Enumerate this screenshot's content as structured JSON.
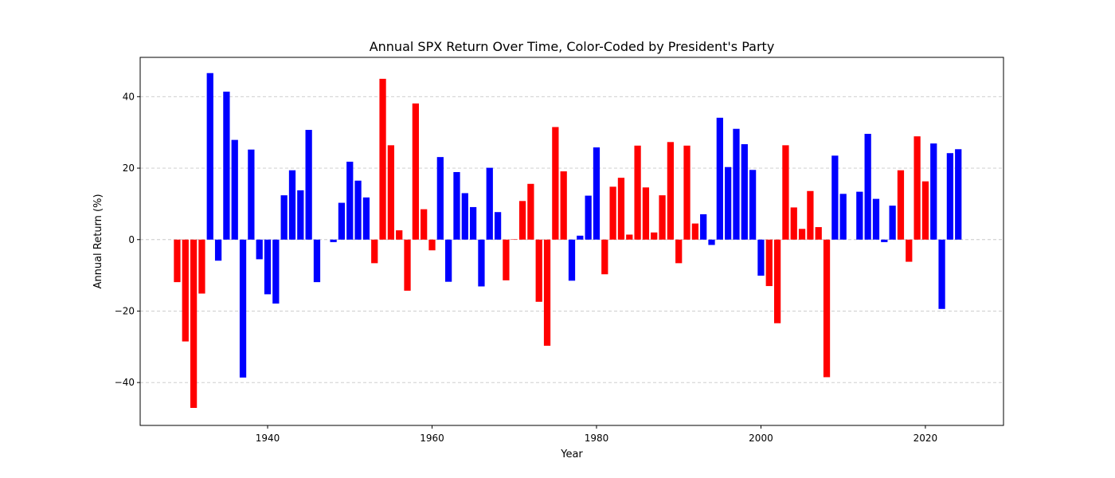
{
  "chart_data": {
    "type": "bar",
    "title": "Annual SPX Return Over Time, Color-Coded by President's Party",
    "xlabel": "Year",
    "ylabel": "Annual Return (%)",
    "xlim": [
      1924.5,
      2029.5
    ],
    "ylim": [
      -52,
      51
    ],
    "x_ticks": [
      1940,
      1960,
      1980,
      2000,
      2020
    ],
    "y_ticks": [
      -40,
      -20,
      0,
      20,
      40
    ],
    "grid": "y-dashed",
    "legend": "none",
    "colors": {
      "republican": "#ff0000",
      "democrat": "#0000ff",
      "grid": "#c8c8c8",
      "frame": "#000000"
    },
    "points": [
      {
        "year": 1929,
        "value": -11.9,
        "party": "republican"
      },
      {
        "year": 1930,
        "value": -28.5,
        "party": "republican"
      },
      {
        "year": 1931,
        "value": -47.1,
        "party": "republican"
      },
      {
        "year": 1932,
        "value": -15.1,
        "party": "republican"
      },
      {
        "year": 1933,
        "value": 46.6,
        "party": "democrat"
      },
      {
        "year": 1934,
        "value": -5.9,
        "party": "democrat"
      },
      {
        "year": 1935,
        "value": 41.4,
        "party": "democrat"
      },
      {
        "year": 1936,
        "value": 27.9,
        "party": "democrat"
      },
      {
        "year": 1937,
        "value": -38.6,
        "party": "democrat"
      },
      {
        "year": 1938,
        "value": 25.2,
        "party": "democrat"
      },
      {
        "year": 1939,
        "value": -5.5,
        "party": "democrat"
      },
      {
        "year": 1940,
        "value": -15.3,
        "party": "democrat"
      },
      {
        "year": 1941,
        "value": -17.9,
        "party": "democrat"
      },
      {
        "year": 1942,
        "value": 12.4,
        "party": "democrat"
      },
      {
        "year": 1943,
        "value": 19.4,
        "party": "democrat"
      },
      {
        "year": 1944,
        "value": 13.8,
        "party": "democrat"
      },
      {
        "year": 1945,
        "value": 30.7,
        "party": "democrat"
      },
      {
        "year": 1946,
        "value": -11.9,
        "party": "democrat"
      },
      {
        "year": 1947,
        "value": 0.0,
        "party": "democrat"
      },
      {
        "year": 1948,
        "value": -0.7,
        "party": "democrat"
      },
      {
        "year": 1949,
        "value": 10.3,
        "party": "democrat"
      },
      {
        "year": 1950,
        "value": 21.8,
        "party": "democrat"
      },
      {
        "year": 1951,
        "value": 16.5,
        "party": "democrat"
      },
      {
        "year": 1952,
        "value": 11.8,
        "party": "democrat"
      },
      {
        "year": 1953,
        "value": -6.6,
        "party": "republican"
      },
      {
        "year": 1954,
        "value": 45.0,
        "party": "republican"
      },
      {
        "year": 1955,
        "value": 26.4,
        "party": "republican"
      },
      {
        "year": 1956,
        "value": 2.6,
        "party": "republican"
      },
      {
        "year": 1957,
        "value": -14.3,
        "party": "republican"
      },
      {
        "year": 1958,
        "value": 38.1,
        "party": "republican"
      },
      {
        "year": 1959,
        "value": 8.5,
        "party": "republican"
      },
      {
        "year": 1960,
        "value": -3.0,
        "party": "republican"
      },
      {
        "year": 1961,
        "value": 23.1,
        "party": "democrat"
      },
      {
        "year": 1962,
        "value": -11.8,
        "party": "democrat"
      },
      {
        "year": 1963,
        "value": 18.9,
        "party": "democrat"
      },
      {
        "year": 1964,
        "value": 13.0,
        "party": "democrat"
      },
      {
        "year": 1965,
        "value": 9.1,
        "party": "democrat"
      },
      {
        "year": 1966,
        "value": -13.1,
        "party": "democrat"
      },
      {
        "year": 1967,
        "value": 20.1,
        "party": "democrat"
      },
      {
        "year": 1968,
        "value": 7.7,
        "party": "democrat"
      },
      {
        "year": 1969,
        "value": -11.4,
        "party": "republican"
      },
      {
        "year": 1970,
        "value": 0.1,
        "party": "republican"
      },
      {
        "year": 1971,
        "value": 10.8,
        "party": "republican"
      },
      {
        "year": 1972,
        "value": 15.6,
        "party": "republican"
      },
      {
        "year": 1973,
        "value": -17.4,
        "party": "republican"
      },
      {
        "year": 1974,
        "value": -29.7,
        "party": "republican"
      },
      {
        "year": 1975,
        "value": 31.5,
        "party": "republican"
      },
      {
        "year": 1976,
        "value": 19.1,
        "party": "republican"
      },
      {
        "year": 1977,
        "value": -11.5,
        "party": "democrat"
      },
      {
        "year": 1978,
        "value": 1.1,
        "party": "democrat"
      },
      {
        "year": 1979,
        "value": 12.3,
        "party": "democrat"
      },
      {
        "year": 1980,
        "value": 25.8,
        "party": "democrat"
      },
      {
        "year": 1981,
        "value": -9.7,
        "party": "republican"
      },
      {
        "year": 1982,
        "value": 14.8,
        "party": "republican"
      },
      {
        "year": 1983,
        "value": 17.3,
        "party": "republican"
      },
      {
        "year": 1984,
        "value": 1.4,
        "party": "republican"
      },
      {
        "year": 1985,
        "value": 26.3,
        "party": "republican"
      },
      {
        "year": 1986,
        "value": 14.6,
        "party": "republican"
      },
      {
        "year": 1987,
        "value": 2.0,
        "party": "republican"
      },
      {
        "year": 1988,
        "value": 12.4,
        "party": "republican"
      },
      {
        "year": 1989,
        "value": 27.3,
        "party": "republican"
      },
      {
        "year": 1990,
        "value": -6.6,
        "party": "republican"
      },
      {
        "year": 1991,
        "value": 26.3,
        "party": "republican"
      },
      {
        "year": 1992,
        "value": 4.5,
        "party": "republican"
      },
      {
        "year": 1993,
        "value": 7.1,
        "party": "democrat"
      },
      {
        "year": 1994,
        "value": -1.5,
        "party": "democrat"
      },
      {
        "year": 1995,
        "value": 34.1,
        "party": "democrat"
      },
      {
        "year": 1996,
        "value": 20.3,
        "party": "democrat"
      },
      {
        "year": 1997,
        "value": 31.0,
        "party": "democrat"
      },
      {
        "year": 1998,
        "value": 26.7,
        "party": "democrat"
      },
      {
        "year": 1999,
        "value": 19.5,
        "party": "democrat"
      },
      {
        "year": 2000,
        "value": -10.1,
        "party": "democrat"
      },
      {
        "year": 2001,
        "value": -13.0,
        "party": "republican"
      },
      {
        "year": 2002,
        "value": -23.4,
        "party": "republican"
      },
      {
        "year": 2003,
        "value": 26.4,
        "party": "republican"
      },
      {
        "year": 2004,
        "value": 9.0,
        "party": "republican"
      },
      {
        "year": 2005,
        "value": 3.0,
        "party": "republican"
      },
      {
        "year": 2006,
        "value": 13.6,
        "party": "republican"
      },
      {
        "year": 2007,
        "value": 3.5,
        "party": "republican"
      },
      {
        "year": 2008,
        "value": -38.5,
        "party": "republican"
      },
      {
        "year": 2009,
        "value": 23.5,
        "party": "democrat"
      },
      {
        "year": 2010,
        "value": 12.8,
        "party": "democrat"
      },
      {
        "year": 2011,
        "value": 0.0,
        "party": "democrat"
      },
      {
        "year": 2012,
        "value": 13.4,
        "party": "democrat"
      },
      {
        "year": 2013,
        "value": 29.6,
        "party": "democrat"
      },
      {
        "year": 2014,
        "value": 11.4,
        "party": "democrat"
      },
      {
        "year": 2015,
        "value": -0.7,
        "party": "democrat"
      },
      {
        "year": 2016,
        "value": 9.5,
        "party": "democrat"
      },
      {
        "year": 2017,
        "value": 19.4,
        "party": "republican"
      },
      {
        "year": 2018,
        "value": -6.2,
        "party": "republican"
      },
      {
        "year": 2019,
        "value": 28.9,
        "party": "republican"
      },
      {
        "year": 2020,
        "value": 16.3,
        "party": "republican"
      },
      {
        "year": 2021,
        "value": 26.9,
        "party": "democrat"
      },
      {
        "year": 2022,
        "value": -19.4,
        "party": "democrat"
      },
      {
        "year": 2023,
        "value": 24.2,
        "party": "democrat"
      },
      {
        "year": 2024,
        "value": 25.3,
        "party": "democrat"
      }
    ]
  }
}
